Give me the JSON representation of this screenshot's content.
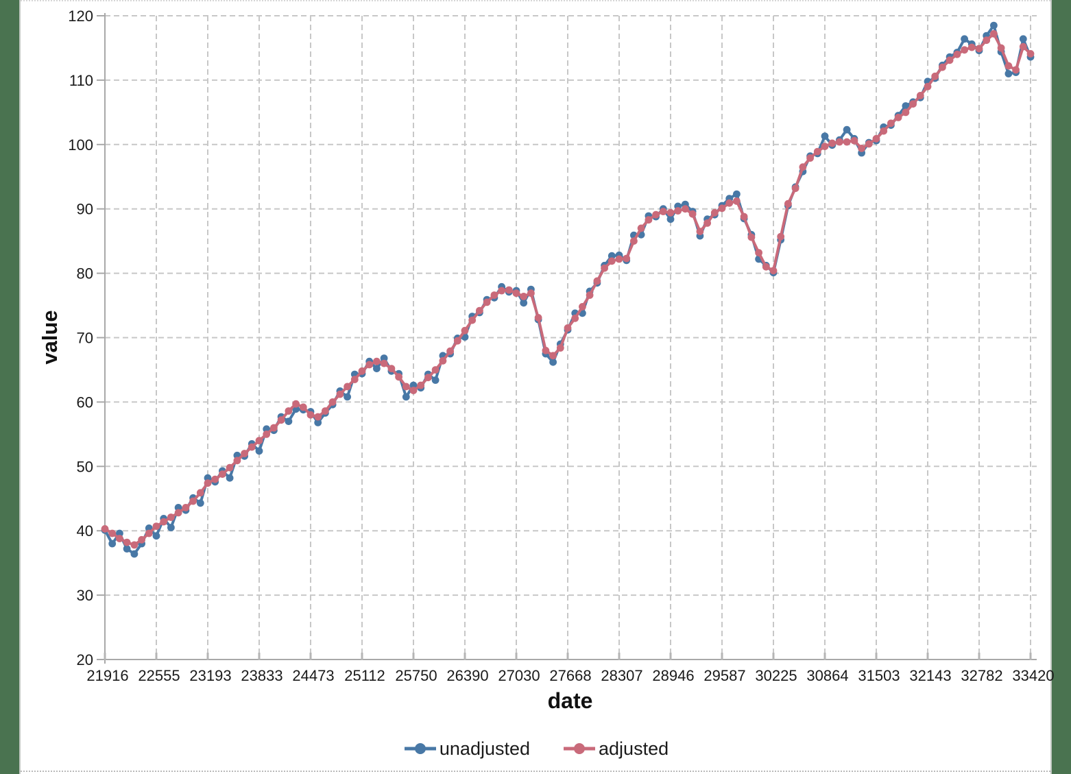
{
  "page": {
    "frame_color": "#4A7350",
    "separator_color": "#C3C8C3",
    "background": "#FFFFFF"
  },
  "axes": {
    "xlabel": "date",
    "ylabel": "value"
  },
  "legend": {
    "position": "bottom-center",
    "items": [
      {
        "label": "unadjusted",
        "color": "#4878A6"
      },
      {
        "label": "adjusted",
        "color": "#C96A7A"
      }
    ]
  },
  "chart_data": {
    "type": "line",
    "title": "",
    "xlabel": "date",
    "ylabel": "value",
    "grid": "dashed",
    "legend_position": "bottom",
    "xlim": [
      21916,
      33420
    ],
    "ylim": [
      20,
      120
    ],
    "x_tick_labels": [
      "21916",
      "22555",
      "23193",
      "23833",
      "24473",
      "25112",
      "25750",
      "26390",
      "27030",
      "27668",
      "28307",
      "28946",
      "29587",
      "30225",
      "30864",
      "31503",
      "32143",
      "32782",
      "33420"
    ],
    "y_tick_labels": [
      "20",
      "30",
      "40",
      "50",
      "60",
      "70",
      "80",
      "90",
      "100",
      "110",
      "120"
    ],
    "x_points_note": "127 evenly spaced quarterly observations from x=21916 to x=33420",
    "series": [
      {
        "name": "unadjusted",
        "color": "#4878A6",
        "marker": "circle",
        "values": [
          40.1,
          38,
          39.6,
          37.2,
          36.4,
          38,
          40.4,
          39.2,
          41.9,
          40.5,
          43.6,
          43.2,
          45.1,
          44.3,
          48.2,
          47.6,
          49.3,
          48.2,
          51.7,
          51.6,
          53.5,
          52.4,
          55.8,
          55.6,
          57.7,
          57,
          58.9,
          58.8,
          58.5,
          56.8,
          58.3,
          59.6,
          61.7,
          60.8,
          64.3,
          64.4,
          66.3,
          65.2,
          66.8,
          64.8,
          64.4,
          60.8,
          62.6,
          62.2,
          64.3,
          63.4,
          67.2,
          67.5,
          69.9,
          70.1,
          73.3,
          73.9,
          75.9,
          76.2,
          77.9,
          77.1,
          77.3,
          75.4,
          77.5,
          72.8,
          67.5,
          66.2,
          69,
          71.2,
          73.8,
          73.8,
          77.2,
          78.5,
          81.2,
          82.7,
          82.8,
          82,
          85.9,
          86,
          88.9,
          88.8,
          90,
          88.4,
          90.4,
          90.7,
          89.6,
          85.8,
          88.4,
          89.1,
          90.5,
          91.6,
          92.3,
          88.5,
          86,
          82.2,
          81.2,
          80.1,
          85.2,
          90.5,
          93.4,
          95.8,
          98.2,
          98.6,
          101.3,
          99.9,
          100.7,
          102.3,
          100.9,
          98.7,
          100.3,
          100.6,
          102.7,
          103,
          104.5,
          106,
          106.6,
          107.3,
          109.8,
          110.3,
          112.3,
          113.6,
          114.3,
          116.4,
          115.6,
          114.6,
          116.9,
          118.5,
          114.4,
          111,
          111.2,
          116.4,
          113.6
        ]
      },
      {
        "name": "adjusted",
        "color": "#C96A7A",
        "marker": "circle",
        "values": [
          40.3,
          39.6,
          38.8,
          38.2,
          37.8,
          38.6,
          39.6,
          40.7,
          41.4,
          42.1,
          42.8,
          43.6,
          44.6,
          45.9,
          47.4,
          48,
          48.8,
          49.8,
          50.9,
          52,
          53,
          54,
          55,
          56,
          57.2,
          58.6,
          59.7,
          59.2,
          58,
          57.7,
          58.6,
          60,
          61.2,
          62.4,
          63.5,
          64.8,
          65.8,
          66.3,
          66,
          65.2,
          63.9,
          62.4,
          61.8,
          62.6,
          63.8,
          65,
          66.4,
          67.9,
          69.5,
          71.1,
          72.7,
          74.2,
          75.5,
          76.6,
          77.3,
          77.4,
          76.9,
          76.4,
          76.9,
          73.1,
          68,
          67.2,
          68.4,
          71.5,
          73,
          74.8,
          76.6,
          78.8,
          80.8,
          81.9,
          82.2,
          82.3,
          85,
          87,
          88.3,
          89.1,
          89.6,
          89.4,
          89.7,
          90,
          89.2,
          86.5,
          87.8,
          89.4,
          90.1,
          90.9,
          91.2,
          88.8,
          85.6,
          83.2,
          81,
          80.4,
          85.7,
          90.8,
          93.2,
          96.5,
          97.9,
          98.9,
          99.7,
          100.2,
          100.4,
          100.4,
          100.6,
          99.4,
          100.1,
          100.9,
          102.1,
          103.3,
          104.2,
          105,
          106.3,
          107.6,
          109,
          110.6,
          112,
          113.1,
          114,
          114.7,
          115.1,
          114.9,
          116.2,
          117.2,
          115,
          112.2,
          111.6,
          115.2,
          114.1
        ]
      }
    ],
    "style": {
      "grid_color": "#C7C7C7",
      "axis_color": "#A8A8A8",
      "tick_text_color": "#1A1A1A",
      "marker_radius": 5.4,
      "line_width": 4
    }
  }
}
